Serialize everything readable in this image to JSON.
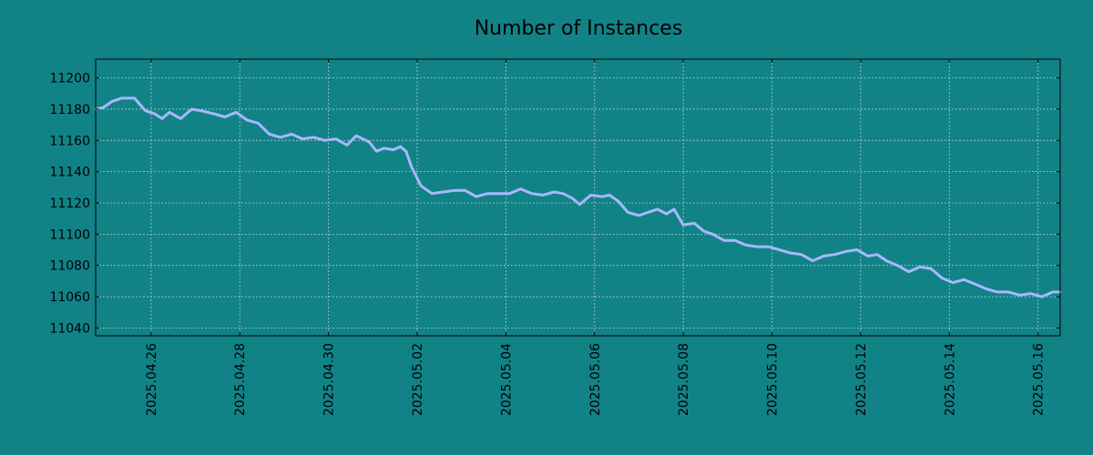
{
  "colors": {
    "background": "#118387",
    "line": "#a8b7ff",
    "grid": "#a9c9c9",
    "axis": "#000000"
  },
  "chart_data": {
    "type": "line",
    "title": "Number of Instances",
    "xlabel": "",
    "ylabel": "",
    "grid": true,
    "xlim": [
      "2025-04-24T18:00",
      "2025-05-16T12:00"
    ],
    "ylim": [
      11035,
      11212
    ],
    "x_ticks": [
      "2025.04.26",
      "2025.04.28",
      "2025.04.30",
      "2025.05.02",
      "2025.05.04",
      "2025.05.06",
      "2025.05.08",
      "2025.05.10",
      "2025.05.12",
      "2025.05.14",
      "2025.05.16"
    ],
    "y_ticks": [
      11040,
      11060,
      11080,
      11100,
      11120,
      11140,
      11160,
      11180,
      11200
    ],
    "series": [
      {
        "x": [
          "2025-04-24T18:00",
          "2025-04-24T22:00",
          "2025-04-25T03:00",
          "2025-04-25T08:00",
          "2025-04-25T15:00",
          "2025-04-25T21:00",
          "2025-04-26T02:00",
          "2025-04-26T06:00",
          "2025-04-26T10:00",
          "2025-04-26T16:00",
          "2025-04-26T22:00",
          "2025-04-27T03:00",
          "2025-04-27T10:00",
          "2025-04-27T16:00",
          "2025-04-27T22:00",
          "2025-04-28T04:00",
          "2025-04-28T10:00",
          "2025-04-28T16:00",
          "2025-04-28T22:00",
          "2025-04-29T04:00",
          "2025-04-29T10:00",
          "2025-04-29T16:00",
          "2025-04-29T22:00",
          "2025-04-30T04:00",
          "2025-04-30T10:00",
          "2025-04-30T15:00",
          "2025-04-30T22:00",
          "2025-05-01T02:00",
          "2025-05-01T06:00",
          "2025-05-01T11:00",
          "2025-05-01T15:00",
          "2025-05-01T18:00",
          "2025-05-01T21:00",
          "2025-05-02T02:00",
          "2025-05-02T08:00",
          "2025-05-02T14:00",
          "2025-05-02T20:00",
          "2025-05-03T02:00",
          "2025-05-03T08:00",
          "2025-05-03T14:00",
          "2025-05-03T20:00",
          "2025-05-04T02:00",
          "2025-05-04T08:00",
          "2025-05-04T14:00",
          "2025-05-04T20:00",
          "2025-05-05T02:00",
          "2025-05-05T07:00",
          "2025-05-05T12:00",
          "2025-05-05T16:00",
          "2025-05-05T22:00",
          "2025-05-06T04:00",
          "2025-05-06T08:00",
          "2025-05-06T13:00",
          "2025-05-06T18:00",
          "2025-05-07T00:00",
          "2025-05-07T05:00",
          "2025-05-07T10:00",
          "2025-05-07T15:00",
          "2025-05-07T19:00",
          "2025-05-08T00:00",
          "2025-05-08T06:00",
          "2025-05-08T11:00",
          "2025-05-08T16:00",
          "2025-05-08T22:00",
          "2025-05-09T04:00",
          "2025-05-09T10:00",
          "2025-05-09T16:00",
          "2025-05-09T22:00",
          "2025-05-10T04:00",
          "2025-05-10T10:00",
          "2025-05-10T16:00",
          "2025-05-10T22:00",
          "2025-05-11T04:00",
          "2025-05-11T10:00",
          "2025-05-11T16:00",
          "2025-05-11T22:00",
          "2025-05-12T04:00",
          "2025-05-12T09:00",
          "2025-05-12T14:00",
          "2025-05-12T20:00",
          "2025-05-13T02:00",
          "2025-05-13T08:00",
          "2025-05-13T14:00",
          "2025-05-13T20:00",
          "2025-05-14T02:00",
          "2025-05-14T08:00",
          "2025-05-14T14:00",
          "2025-05-14T20:00",
          "2025-05-15T02:00",
          "2025-05-15T08:00",
          "2025-05-15T14:00",
          "2025-05-15T20:00",
          "2025-05-16T02:00",
          "2025-05-16T08:00",
          "2025-05-16T12:00"
        ],
        "values": [
          11180,
          11181,
          11185,
          11187,
          11187,
          11179,
          11177,
          11174,
          11178,
          11174,
          11180,
          11179,
          11177,
          11175,
          11178,
          11173,
          11171,
          11164,
          11162,
          11164,
          11161,
          11162,
          11160,
          11161,
          11157,
          11163,
          11159,
          11153,
          11155,
          11154,
          11156,
          11153,
          11143,
          11131,
          11126,
          11127,
          11128,
          11128,
          11124,
          11126,
          11126,
          11126,
          11129,
          11126,
          11125,
          11127,
          11126,
          11123,
          11119,
          11125,
          11124,
          11125,
          11121,
          11114,
          11112,
          11114,
          11116,
          11113,
          11116,
          11106,
          11107,
          11102,
          11100,
          11096,
          11096,
          11093,
          11092,
          11092,
          11090,
          11088,
          11087,
          11083,
          11086,
          11087,
          11089,
          11090,
          11086,
          11087,
          11083,
          11080,
          11076,
          11079,
          11078,
          11072,
          11069,
          11071,
          11068,
          11065,
          11063,
          11063,
          11061,
          11062,
          11060,
          11063,
          11063
        ]
      }
    ]
  }
}
